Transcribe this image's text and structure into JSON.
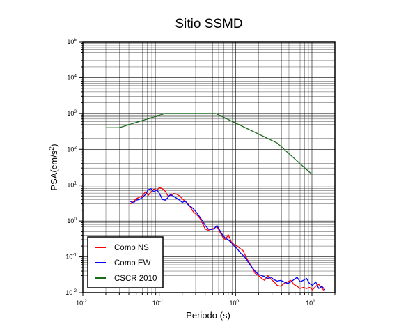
{
  "chart_data": {
    "type": "line",
    "title": "Sitio SSMD",
    "xlabel": "Periodo (s)",
    "ylabel": {
      "base": "PSA(cm/s",
      "exp": "2",
      "close": ")"
    },
    "x_scale": "log",
    "y_scale": "log",
    "xlim": [
      0.01,
      20
    ],
    "ylim": [
      0.01,
      100000
    ],
    "x_ticks": [
      {
        "value": 0.01,
        "base": "10",
        "exp": "-2"
      },
      {
        "value": 0.1,
        "base": "10",
        "exp": "-1"
      },
      {
        "value": 1,
        "base": "10",
        "exp": "0"
      },
      {
        "value": 10,
        "base": "10",
        "exp": "1"
      }
    ],
    "y_ticks": [
      {
        "value": 0.01,
        "base": "10",
        "exp": "-2"
      },
      {
        "value": 0.1,
        "base": "10",
        "exp": "-1"
      },
      {
        "value": 1,
        "base": "10",
        "exp": "0"
      },
      {
        "value": 10,
        "base": "10",
        "exp": "1"
      },
      {
        "value": 100,
        "base": "10",
        "exp": "2"
      },
      {
        "value": 1000,
        "base": "10",
        "exp": "3"
      },
      {
        "value": 10000,
        "base": "10",
        "exp": "4"
      },
      {
        "value": 100000,
        "base": "10",
        "exp": "5"
      }
    ],
    "grid": true,
    "legend_position": "bottom-left",
    "series": [
      {
        "name": "Comp NS",
        "color": "#ff0000",
        "x": [
          0.042,
          0.046,
          0.05,
          0.055,
          0.06,
          0.066,
          0.072,
          0.078,
          0.085,
          0.093,
          0.1,
          0.11,
          0.12,
          0.13,
          0.14,
          0.155,
          0.17,
          0.185,
          0.2,
          0.22,
          0.24,
          0.26,
          0.28,
          0.31,
          0.34,
          0.37,
          0.4,
          0.44,
          0.48,
          0.52,
          0.57,
          0.62,
          0.68,
          0.74,
          0.8,
          0.88,
          0.96,
          1.05,
          1.15,
          1.25,
          1.37,
          1.5,
          1.65,
          1.8,
          2.0,
          2.2,
          2.4,
          2.65,
          2.9,
          3.2,
          3.5,
          3.9,
          4.3,
          4.8,
          5.3,
          5.8,
          6.4,
          7.0,
          7.7,
          8.5,
          9.3,
          10.2,
          11.2,
          12.3,
          13.5,
          14.8
        ],
        "y": [
          3.0,
          3.5,
          4.2,
          4.6,
          5.0,
          6.5,
          5.2,
          6.5,
          7.8,
          7.2,
          8.5,
          8.0,
          6.8,
          5.0,
          5.2,
          5.8,
          5.6,
          5.0,
          4.2,
          3.5,
          3.0,
          2.3,
          1.8,
          1.5,
          1.2,
          0.85,
          0.6,
          0.55,
          0.6,
          0.62,
          0.7,
          0.5,
          0.35,
          0.3,
          0.42,
          0.26,
          0.22,
          0.2,
          0.17,
          0.15,
          0.1,
          0.07,
          0.05,
          0.035,
          0.03,
          0.025,
          0.022,
          0.03,
          0.024,
          0.02,
          0.016,
          0.015,
          0.018,
          0.02,
          0.022,
          0.017,
          0.015,
          0.013,
          0.014,
          0.013,
          0.014,
          0.012,
          0.015,
          0.017,
          0.013,
          0.011
        ]
      },
      {
        "name": "Comp EW",
        "color": "#0000ff",
        "x": [
          0.042,
          0.046,
          0.05,
          0.055,
          0.06,
          0.066,
          0.072,
          0.078,
          0.085,
          0.093,
          0.1,
          0.11,
          0.12,
          0.13,
          0.14,
          0.155,
          0.17,
          0.185,
          0.2,
          0.22,
          0.24,
          0.26,
          0.28,
          0.31,
          0.34,
          0.37,
          0.4,
          0.44,
          0.48,
          0.52,
          0.57,
          0.62,
          0.68,
          0.74,
          0.8,
          0.88,
          0.96,
          1.05,
          1.15,
          1.25,
          1.37,
          1.5,
          1.65,
          1.8,
          2.0,
          2.2,
          2.4,
          2.65,
          2.9,
          3.2,
          3.5,
          3.9,
          4.3,
          4.8,
          5.3,
          5.8,
          6.4,
          7.0,
          7.7,
          8.5,
          9.3,
          10.2,
          11.2,
          12.3,
          13.5,
          14.8
        ],
        "y": [
          3.5,
          3.2,
          3.8,
          4.0,
          4.5,
          5.5,
          7.5,
          8.0,
          6.5,
          7.5,
          6.0,
          4.0,
          3.8,
          4.5,
          5.5,
          4.8,
          4.3,
          3.8,
          3.3,
          3.6,
          2.8,
          2.5,
          2.2,
          1.7,
          1.3,
          1.0,
          0.75,
          0.6,
          0.58,
          0.6,
          0.75,
          0.55,
          0.4,
          0.33,
          0.3,
          0.25,
          0.2,
          0.17,
          0.13,
          0.11,
          0.09,
          0.065,
          0.05,
          0.04,
          0.032,
          0.03,
          0.028,
          0.025,
          0.027,
          0.023,
          0.021,
          0.022,
          0.02,
          0.018,
          0.02,
          0.023,
          0.027,
          0.02,
          0.022,
          0.025,
          0.018,
          0.016,
          0.02,
          0.013,
          0.015,
          0.012
        ]
      },
      {
        "name": "CSCR 2010",
        "color": "#1a6b1a",
        "x": [
          0.02,
          0.03,
          0.12,
          0.55,
          3.5,
          10.0
        ],
        "y": [
          400,
          400,
          1000,
          1000,
          150,
          20
        ]
      }
    ]
  }
}
